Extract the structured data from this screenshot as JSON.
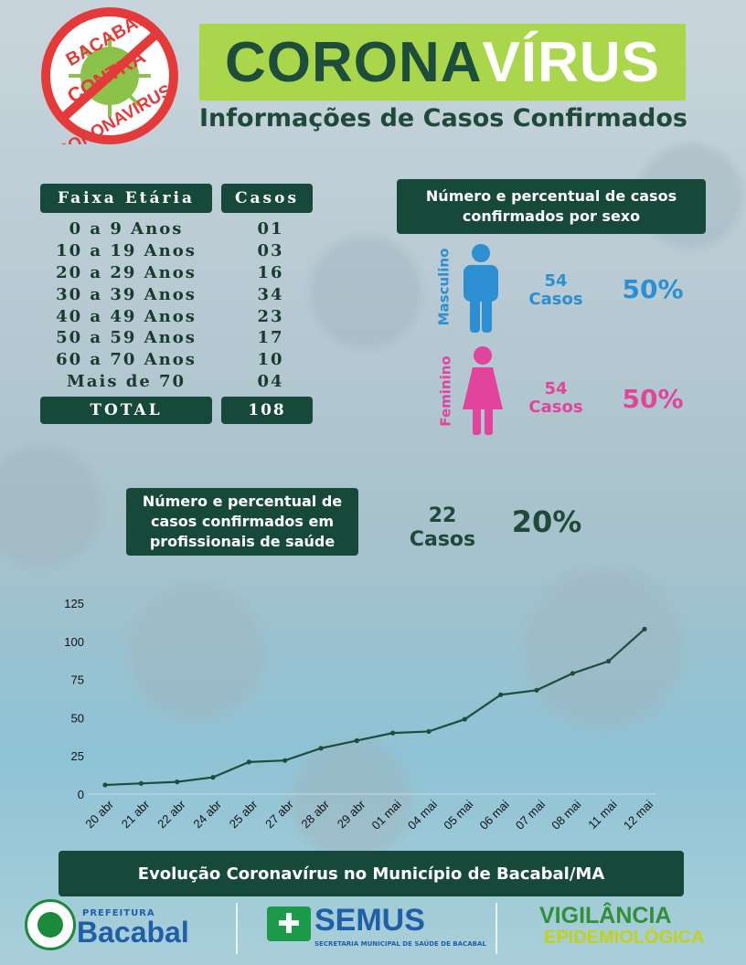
{
  "badge": {
    "top": "BACABAL",
    "middle": "CONTRA",
    "bottom": "CORONAVIRUS"
  },
  "header": {
    "title_part1": "CORONA",
    "title_part2": "VÍRUS",
    "subtitle": "Informações de Casos Confirmados"
  },
  "age_table": {
    "header_age": "Faixa Etária",
    "header_cases": "Casos",
    "rows": [
      {
        "label": "0 a 9 Anos",
        "cases": "01"
      },
      {
        "label": "10 a 19 Anos",
        "cases": "03"
      },
      {
        "label": "20 a 29 Anos",
        "cases": "16"
      },
      {
        "label": "30 a 39 Anos",
        "cases": "34"
      },
      {
        "label": "40 a 49 Anos",
        "cases": "23"
      },
      {
        "label": "50 a 59 Anos",
        "cases": "17"
      },
      {
        "label": "60 a 70 Anos",
        "cases": "10"
      },
      {
        "label": "Mais de 70",
        "cases": "04"
      }
    ],
    "total_label": "TOTAL",
    "total_value": "108"
  },
  "sex": {
    "title": "Número e percentual de casos confirmados por sexo",
    "male": {
      "label": "Masculino",
      "count": "54",
      "unit": "Casos",
      "percent": "50%",
      "color": "#2b8fd1"
    },
    "female": {
      "label": "Feminino",
      "count": "54",
      "unit": "Casos",
      "percent": "50%",
      "color": "#e2449c"
    }
  },
  "health": {
    "title": "Número e percentual de casos confirmados em profissionais de saúde",
    "count": "22",
    "unit": "Casos",
    "percent": "20%"
  },
  "chart_data": {
    "type": "line",
    "categories": [
      "20 abr",
      "21 abr",
      "22 abr",
      "24 abr",
      "25 abr",
      "27 abr",
      "28 abr",
      "29 abr",
      "01 mai",
      "04 mai",
      "05 mai",
      "06 mai",
      "07 mai",
      "08 mai",
      "11 mai",
      "12 mai"
    ],
    "values": [
      6,
      7,
      8,
      11,
      21,
      22,
      30,
      35,
      40,
      41,
      49,
      65,
      68,
      79,
      87,
      108
    ],
    "ylim": [
      0,
      125
    ],
    "yticks": [
      0,
      25,
      50,
      75,
      100,
      125
    ],
    "grid": false,
    "line_color": "#1d4d3c",
    "caption": "Evolução Coronavírus no Município de Bacabal/MA"
  },
  "footer": {
    "bacabal_small": "PREFEITURA",
    "bacabal": "Bacabal",
    "seal_text": "ORGULHO DE SER BACABALENSE",
    "semus": "SEMUS",
    "semus_sub": "SECRETARIA MUNICIPAL DE SAÚDE DE BACABAL",
    "vig1": "VIGILÂNCIA",
    "vig2": "EPIDEMIOLÓGICA"
  }
}
